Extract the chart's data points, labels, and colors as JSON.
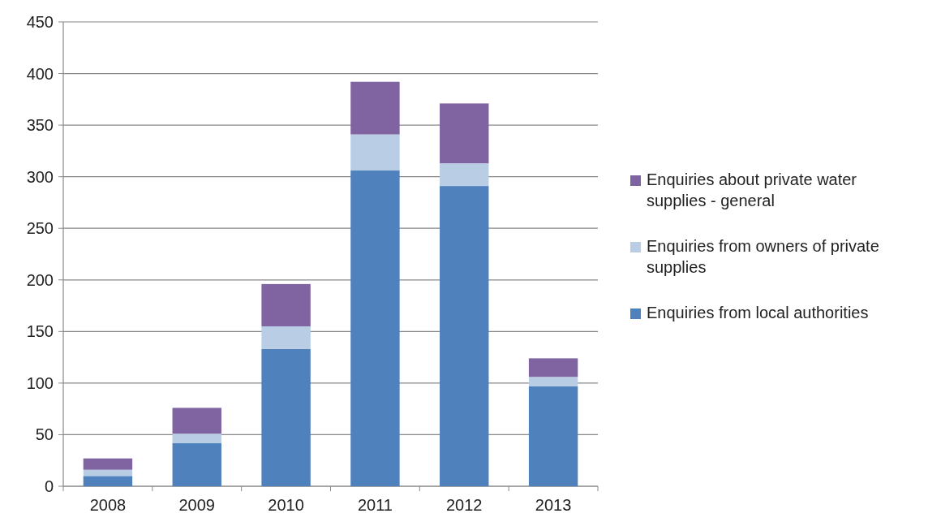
{
  "chart_data": {
    "type": "bar",
    "stacked": true,
    "categories": [
      "2008",
      "2009",
      "2010",
      "2011",
      "2012",
      "2013"
    ],
    "series": [
      {
        "name": "Enquiries from local authorities",
        "color": "#4f81bd",
        "values": [
          10,
          42,
          133,
          306,
          291,
          97
        ]
      },
      {
        "name": "Enquiries from owners of private supplies",
        "color": "#b9cde5",
        "values": [
          6,
          9,
          22,
          35,
          22,
          9
        ]
      },
      {
        "name": "Enquiries about private water supplies - general",
        "color": "#8064a2",
        "values": [
          11,
          25,
          41,
          51,
          58,
          18
        ]
      }
    ],
    "ylim": [
      0,
      450
    ],
    "yticks": [
      0,
      50,
      100,
      150,
      200,
      250,
      300,
      350,
      400,
      450
    ],
    "grid": "y",
    "legend": "right"
  }
}
